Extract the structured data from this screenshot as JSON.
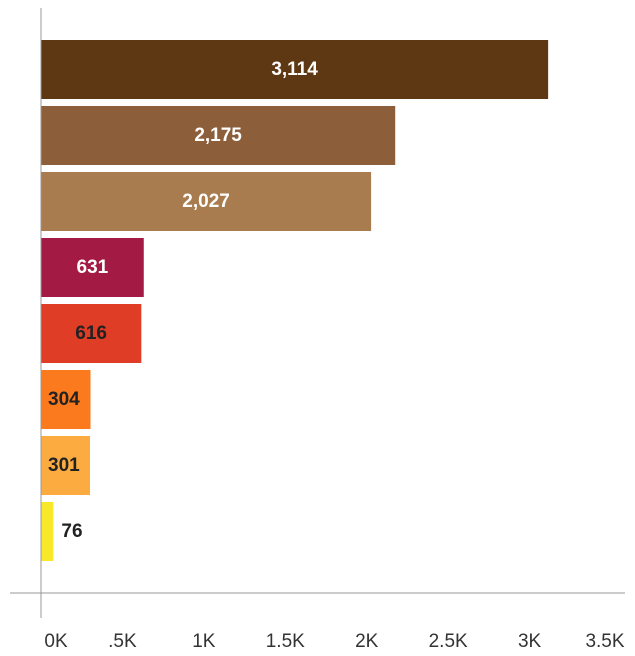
{
  "chart_data": {
    "type": "bar",
    "orientation": "horizontal",
    "values": [
      3114,
      2175,
      2027,
      631,
      616,
      304,
      301,
      76
    ],
    "value_labels": [
      "3,114",
      "2,175",
      "2,027",
      "631",
      "616",
      "304",
      "301",
      "76"
    ],
    "colors": [
      "#5e3812",
      "#8c5e3a",
      "#a87c4e",
      "#a31a45",
      "#e03d26",
      "#fc7a1e",
      "#fcab40",
      "#f8e82a"
    ],
    "label_colors": [
      "#ffffff",
      "#ffffff",
      "#ffffff",
      "#ffffff",
      "#222222",
      "#222222",
      "#222222",
      "#222222"
    ],
    "xlim": [
      0,
      3500
    ],
    "xticks": [
      0,
      500,
      1000,
      1500,
      2000,
      2500,
      3000,
      3500
    ],
    "xtick_labels": [
      "0K",
      ".5K",
      "1K",
      "1.5K",
      "2K",
      "2.5K",
      "3K",
      "3.5K"
    ],
    "grid": false,
    "legend": "none"
  }
}
